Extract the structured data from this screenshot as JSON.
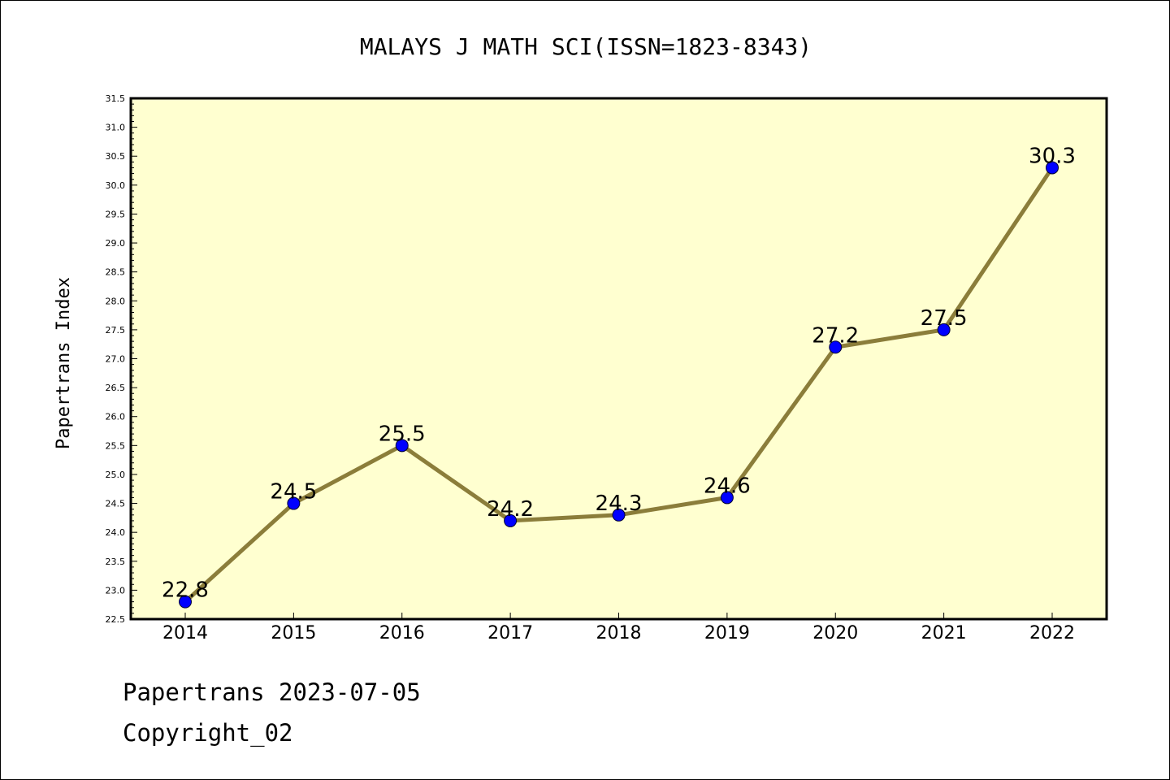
{
  "footer": {
    "line1": "Papertrans 2023-07-05",
    "line2": "Copyright_02"
  },
  "chart_data": {
    "type": "line",
    "title": "MALAYS J MATH SCI(ISSN=1823-8343)",
    "xlabel": "",
    "ylabel": "Papertrans Index",
    "categories": [
      "2014",
      "2015",
      "2016",
      "2017",
      "2018",
      "2019",
      "2020",
      "2021",
      "2022"
    ],
    "series": [
      {
        "values": [
          22.8,
          24.5,
          25.5,
          24.2,
          24.3,
          24.6,
          27.2,
          27.5,
          30.3
        ],
        "data_labels": [
          "22.8",
          "24.5",
          "25.5",
          "24.2",
          "24.3",
          "24.6",
          "27.2",
          "27.5",
          "30.3"
        ]
      }
    ],
    "ylim": [
      22.5,
      31.5
    ],
    "yticks": [
      "22.5",
      "23.0",
      "23.5",
      "24.0",
      "24.5",
      "25.0",
      "25.5",
      "26.0",
      "26.5",
      "27.0",
      "27.5",
      "28.0",
      "28.5",
      "29.0",
      "29.5",
      "30.0",
      "30.5",
      "31.0",
      "31.5"
    ],
    "grid": false,
    "legend": "none",
    "colors": {
      "plot_background": "#ffffd0",
      "line": "#8b7d3a",
      "marker": "#0000ff",
      "axes": "#000000"
    }
  }
}
